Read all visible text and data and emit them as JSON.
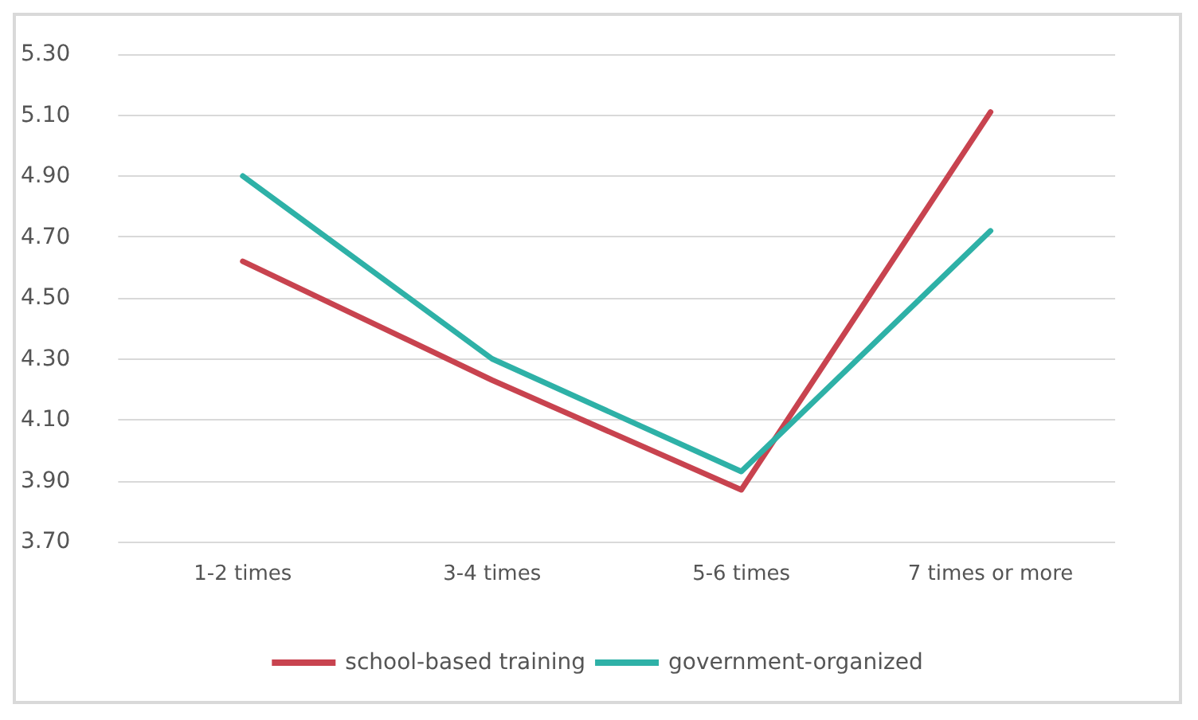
{
  "chart_data": {
    "type": "line",
    "categories": [
      "1-2 times",
      "3-4 times",
      "5-6 times",
      "7 times or more"
    ],
    "series": [
      {
        "name": "school-based training",
        "color": "#c8434f",
        "values": [
          4.62,
          4.23,
          3.87,
          5.11
        ]
      },
      {
        "name": "government-organized",
        "color": "#2eb1a7",
        "values": [
          4.9,
          4.3,
          3.93,
          4.72
        ]
      }
    ],
    "ylim": [
      3.7,
      5.3
    ],
    "yticks": [
      {
        "value": 3.7,
        "label": "3.70"
      },
      {
        "value": 3.9,
        "label": "3.90"
      },
      {
        "value": 4.1,
        "label": "4.10"
      },
      {
        "value": 4.3,
        "label": "4.30"
      },
      {
        "value": 4.5,
        "label": "4.50"
      },
      {
        "value": 4.7,
        "label": "4.70"
      },
      {
        "value": 4.9,
        "label": "4.90"
      },
      {
        "value": 5.1,
        "label": "5.10"
      },
      {
        "value": 5.3,
        "label": "5.30"
      }
    ],
    "grid": "y",
    "legend": "bottom",
    "marker": "none",
    "line_style": "solid"
  }
}
